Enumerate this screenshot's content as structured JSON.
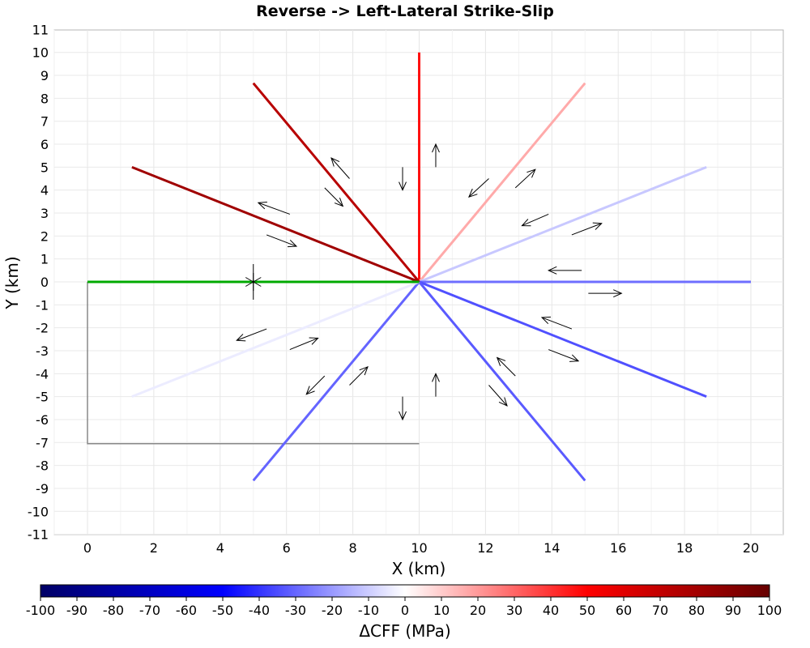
{
  "chart_data": {
    "type": "line",
    "title": "Reverse -> Left-Lateral Strike-Slip",
    "xlabel": "X (km)",
    "ylabel": "Y (km)",
    "xlim": [
      -0.8,
      21.0
    ],
    "ylim": [
      -11,
      11
    ],
    "x_ticks": [
      0,
      2,
      4,
      6,
      8,
      10,
      12,
      14,
      16,
      18,
      20
    ],
    "y_ticks": [
      11,
      10,
      9,
      8,
      7,
      6,
      5,
      4,
      3,
      2,
      1,
      0,
      -1,
      -2,
      -3,
      -4,
      -5,
      -6,
      -7,
      -8,
      -9,
      -10,
      -11
    ],
    "grid": true,
    "faults": [
      {
        "x": [
          10,
          10
        ],
        "y": [
          0,
          10
        ],
        "color": "#ff1111",
        "dcff": 50
      },
      {
        "x": [
          10,
          15
        ],
        "y": [
          0,
          8.66
        ],
        "color": "#ffaaaa",
        "dcff": 18
      },
      {
        "x": [
          10,
          18.66
        ],
        "y": [
          0,
          5
        ],
        "color": "#c8c8ff",
        "dcff": -12
      },
      {
        "x": [
          10,
          20
        ],
        "y": [
          0,
          0
        ],
        "color": "#6e6eff",
        "dcff": -35
      },
      {
        "x": [
          10,
          18.66
        ],
        "y": [
          0,
          -5
        ],
        "color": "#5050ff",
        "dcff": -42
      },
      {
        "x": [
          10,
          15
        ],
        "y": [
          0,
          -8.66
        ],
        "color": "#5a5aff",
        "dcff": -40
      },
      {
        "x": [
          10,
          5
        ],
        "y": [
          0,
          -8.66
        ],
        "color": "#6464ff",
        "dcff": -38
      },
      {
        "x": [
          10,
          1.34
        ],
        "y": [
          0,
          -5
        ],
        "color": "#ececff",
        "dcff": -4
      },
      {
        "x": [
          10,
          5
        ],
        "y": [
          0,
          8.66
        ],
        "color": "#b80000",
        "dcff": 85
      },
      {
        "x": [
          10,
          1.34
        ],
        "y": [
          0,
          5
        ],
        "color": "#a00000",
        "dcff": 92
      }
    ],
    "source_fault": {
      "x": [
        0,
        10
      ],
      "y": [
        0,
        0
      ],
      "color": "#00aa00"
    },
    "source_outline": {
      "x": [
        0,
        0,
        10
      ],
      "y": [
        0,
        -7.05,
        -7.05
      ],
      "color": "#888888"
    },
    "hypocenter_marker": {
      "x": 5,
      "y": 0
    },
    "slip_arrows": [
      {
        "x1": 10.5,
        "y1": 5.0,
        "x2": 10.5,
        "y2": 6.0
      },
      {
        "x1": 9.5,
        "y1": 5.0,
        "x2": 9.5,
        "y2": 4.0
      },
      {
        "x1": 12.1,
        "y1": 4.5,
        "x2": 11.5,
        "y2": 3.7
      },
      {
        "x1": 12.9,
        "y1": 4.1,
        "x2": 13.5,
        "y2": 4.9
      },
      {
        "x1": 13.9,
        "y1": 2.95,
        "x2": 13.1,
        "y2": 2.45
      },
      {
        "x1": 14.6,
        "y1": 2.05,
        "x2": 15.5,
        "y2": 2.55
      },
      {
        "x1": 14.9,
        "y1": 0.5,
        "x2": 13.9,
        "y2": 0.5
      },
      {
        "x1": 15.1,
        "y1": -0.5,
        "x2": 16.1,
        "y2": -0.5
      },
      {
        "x1": 14.6,
        "y1": -2.05,
        "x2": 13.7,
        "y2": -1.55
      },
      {
        "x1": 13.9,
        "y1": -2.95,
        "x2": 14.8,
        "y2": -3.45
      },
      {
        "x1": 12.9,
        "y1": -4.1,
        "x2": 12.35,
        "y2": -3.3
      },
      {
        "x1": 12.1,
        "y1": -4.5,
        "x2": 12.65,
        "y2": -5.4
      },
      {
        "x1": 10.5,
        "y1": -5.0,
        "x2": 10.5,
        "y2": -4.0
      },
      {
        "x1": 9.5,
        "y1": -5.0,
        "x2": 9.5,
        "y2": -6.0
      },
      {
        "x1": 7.9,
        "y1": -4.5,
        "x2": 8.45,
        "y2": -3.7
      },
      {
        "x1": 7.15,
        "y1": -4.1,
        "x2": 6.6,
        "y2": -4.9
      },
      {
        "x1": 6.1,
        "y1": -2.95,
        "x2": 6.95,
        "y2": -2.45
      },
      {
        "x1": 5.4,
        "y1": -2.05,
        "x2": 4.5,
        "y2": -2.55
      },
      {
        "x1": 5.4,
        "y1": 2.05,
        "x2": 6.3,
        "y2": 1.55
      },
      {
        "x1": 6.1,
        "y1": 2.95,
        "x2": 5.15,
        "y2": 3.45
      },
      {
        "x1": 7.15,
        "y1": 4.1,
        "x2": 7.7,
        "y2": 3.3
      },
      {
        "x1": 7.9,
        "y1": 4.5,
        "x2": 7.35,
        "y2": 5.4
      }
    ],
    "colorbar": {
      "label": "ΔCFF (MPa)",
      "min": -100,
      "max": 100,
      "ticks": [
        -100,
        -90,
        -80,
        -70,
        -60,
        -50,
        -40,
        -30,
        -20,
        -10,
        0,
        10,
        20,
        30,
        40,
        50,
        60,
        70,
        80,
        90,
        100
      ],
      "tick_labels": [
        "-100",
        "-90",
        "-80",
        "-70",
        "-60",
        "-50",
        "-40",
        "-30",
        "-20",
        "-10",
        "0",
        "10",
        "20",
        "30",
        "40",
        "50",
        "60",
        "70",
        "80",
        "90",
        "100"
      ],
      "colors": [
        "#000066",
        "#0000ff",
        "#ffffff",
        "#ff0000",
        "#660000"
      ]
    }
  }
}
